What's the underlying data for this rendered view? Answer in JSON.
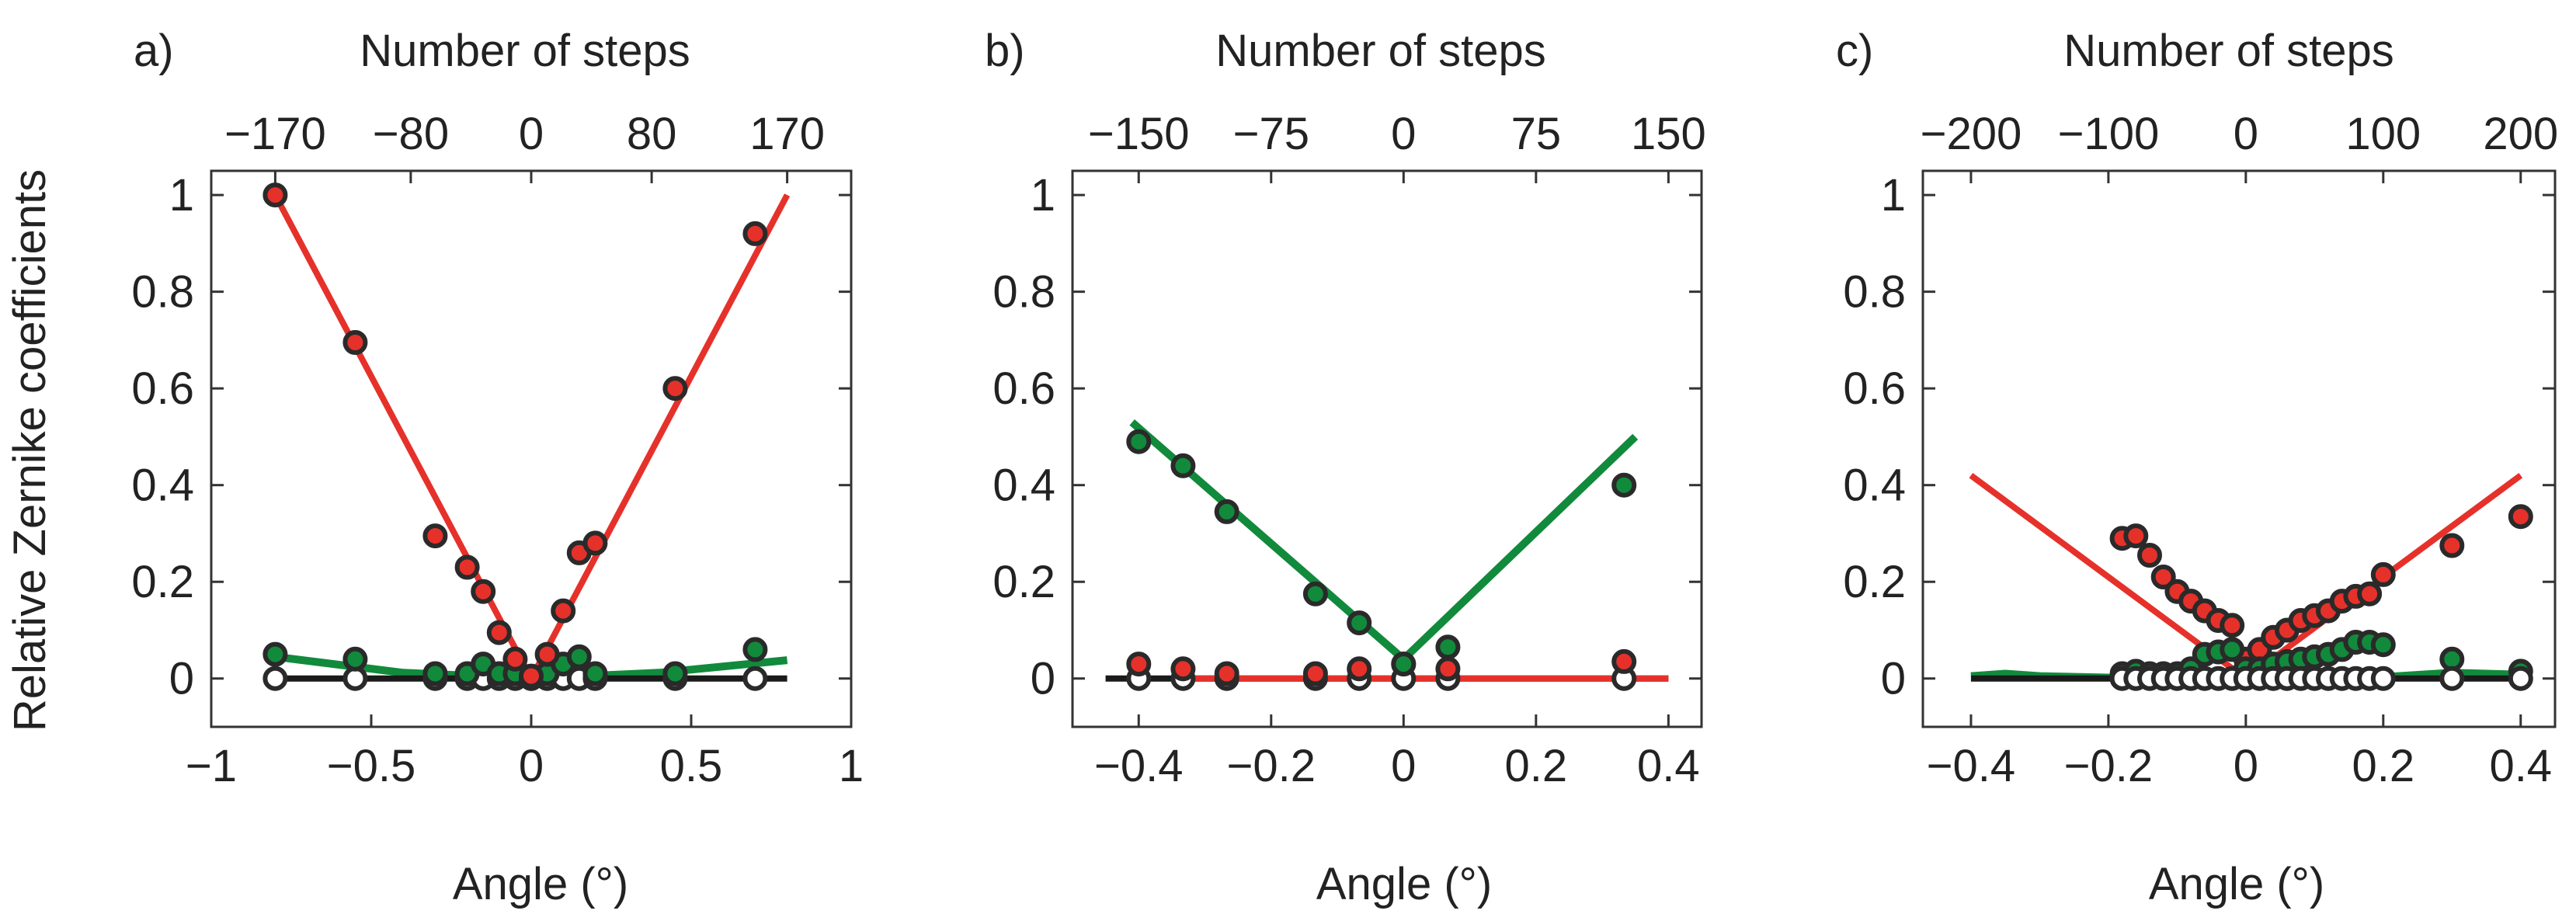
{
  "figure": {
    "ylabel": "Relative Zernike coefficients",
    "colors": {
      "red": "#e6312b",
      "green": "#118a3c",
      "black": "#1a1a1a",
      "marker_edge": "#2a2a2a",
      "white_marker": "#ffffff",
      "axis": "#333333"
    }
  },
  "chart_data": [
    {
      "panel_label": "a)",
      "type": "scatter",
      "title": "Number of steps",
      "xlabel": "Angle (°)",
      "ylabel": "Relative Zernike coefficients",
      "xlim": [
        -1,
        1
      ],
      "ylim": [
        -0.1,
        1.05
      ],
      "xticks": [
        -1,
        -0.5,
        0,
        0.5,
        1
      ],
      "xtick_labels": [
        "−1",
        "−0.5",
        "0",
        "0.5",
        "1"
      ],
      "yticks": [
        0,
        0.2,
        0.4,
        0.6,
        0.8,
        1
      ],
      "ytick_labels": [
        "0",
        "0.2",
        "0.4",
        "0.6",
        "0.8",
        "1"
      ],
      "top_axis": {
        "label": "Number of steps",
        "ticks": [
          -170,
          -80,
          0,
          80,
          170
        ],
        "tick_labels": [
          "−170",
          "−80",
          "0",
          "80",
          "170"
        ],
        "angle_per_step": 0.0047059
      },
      "lines": [
        {
          "name": "red fit",
          "color": "red",
          "x": [
            -0.8,
            0,
            0.8
          ],
          "y": [
            1.0,
            0.0,
            1.0
          ]
        },
        {
          "name": "green fit",
          "color": "green",
          "x": [
            -0.8,
            -0.4,
            0,
            0.4,
            0.8
          ],
          "y": [
            0.045,
            0.012,
            0.0,
            0.012,
            0.038
          ]
        },
        {
          "name": "black fit",
          "color": "black",
          "x": [
            -0.8,
            0.8
          ],
          "y": [
            0.0,
            0.0
          ]
        }
      ],
      "series": [
        {
          "name": "white",
          "color": "white_marker",
          "x": [
            -0.8,
            -0.55,
            -0.3,
            -0.2,
            -0.15,
            -0.1,
            -0.05,
            0.0,
            0.05,
            0.1,
            0.15,
            0.2,
            0.45,
            0.7
          ],
          "y": [
            0,
            0,
            0,
            0,
            0,
            0,
            0,
            0,
            0,
            0,
            0,
            0,
            0,
            0
          ]
        },
        {
          "name": "green",
          "color": "green",
          "x": [
            -0.8,
            -0.55,
            -0.3,
            -0.2,
            -0.15,
            -0.1,
            -0.05,
            0.0,
            0.05,
            0.1,
            0.15,
            0.2,
            0.45,
            0.7
          ],
          "y": [
            0.05,
            0.04,
            0.01,
            0.01,
            0.03,
            0.01,
            0.01,
            0.0,
            0.01,
            0.03,
            0.045,
            0.01,
            0.01,
            0.06
          ]
        },
        {
          "name": "red",
          "color": "red",
          "x": [
            -0.8,
            -0.55,
            -0.3,
            -0.2,
            -0.15,
            -0.1,
            -0.05,
            0.0,
            0.05,
            0.1,
            0.15,
            0.2,
            0.45,
            0.7
          ],
          "y": [
            1.0,
            0.695,
            0.295,
            0.23,
            0.18,
            0.095,
            0.04,
            0.005,
            0.05,
            0.14,
            0.26,
            0.28,
            0.6,
            0.92
          ]
        }
      ]
    },
    {
      "panel_label": "b)",
      "type": "scatter",
      "title": "Number of steps",
      "xlabel": "Angle (°)",
      "ylabel": "",
      "xlim": [
        -0.5,
        0.45
      ],
      "ylim": [
        -0.1,
        1.05
      ],
      "xticks": [
        -0.4,
        -0.2,
        0,
        0.2,
        0.4
      ],
      "xtick_labels": [
        "−0.4",
        "−0.2",
        "0",
        "0.2",
        "0.4"
      ],
      "yticks": [
        0,
        0.2,
        0.4,
        0.6,
        0.8,
        1
      ],
      "ytick_labels": [
        "0",
        "0.2",
        "0.4",
        "0.6",
        "0.8",
        "1"
      ],
      "top_axis": {
        "label": "Number of steps",
        "ticks": [
          -150,
          -75,
          0,
          75,
          150
        ],
        "tick_labels": [
          "−150",
          "−75",
          "0",
          "75",
          "150"
        ],
        "angle_per_step": 0.0026667
      },
      "lines": [
        {
          "name": "black fit",
          "color": "black",
          "x": [
            -0.45,
            0.4
          ],
          "y": [
            0.0,
            0.0
          ]
        },
        {
          "name": "red fit",
          "color": "red",
          "x": [
            -0.34,
            0.4
          ],
          "y": [
            0.0,
            0.0
          ]
        },
        {
          "name": "green fit",
          "color": "green",
          "x": [
            -0.41,
            0.0,
            0.35
          ],
          "y": [
            0.53,
            0.04,
            0.5
          ]
        }
      ],
      "series": [
        {
          "name": "white",
          "color": "white_marker",
          "x": [
            -0.4,
            -0.333,
            -0.267,
            -0.133,
            -0.067,
            0.0,
            0.067,
            0.333
          ],
          "y": [
            0,
            0,
            0,
            0,
            0,
            0,
            0,
            0
          ]
        },
        {
          "name": "red",
          "color": "red",
          "x": [
            -0.4,
            -0.333,
            -0.267,
            -0.133,
            -0.067,
            0.0,
            0.067,
            0.333
          ],
          "y": [
            0.03,
            0.02,
            0.01,
            0.01,
            0.02,
            0.03,
            0.02,
            0.035
          ]
        },
        {
          "name": "green",
          "color": "green",
          "x": [
            -0.4,
            -0.333,
            -0.267,
            -0.133,
            -0.067,
            0.0,
            0.067,
            0.333
          ],
          "y": [
            0.49,
            0.44,
            0.345,
            0.175,
            0.115,
            0.03,
            0.065,
            0.4
          ]
        }
      ]
    },
    {
      "panel_label": "c)",
      "type": "scatter",
      "title": "Number of steps",
      "xlabel": "Angle (°)",
      "ylabel": "",
      "xlim": [
        -0.47,
        0.45
      ],
      "ylim": [
        -0.1,
        1.05
      ],
      "xticks": [
        -0.4,
        -0.2,
        0,
        0.2,
        0.4
      ],
      "xtick_labels": [
        "−0.4",
        "−0.2",
        "0",
        "0.2",
        "0.4"
      ],
      "yticks": [
        0,
        0.2,
        0.4,
        0.6,
        0.8,
        1
      ],
      "ytick_labels": [
        "0",
        "0.2",
        "0.4",
        "0.6",
        "0.8",
        "1"
      ],
      "top_axis": {
        "label": "Number of steps",
        "ticks": [
          -200,
          -100,
          0,
          100,
          200
        ],
        "tick_labels": [
          "−200",
          "−100",
          "0",
          "100",
          "200"
        ],
        "angle_per_step": 0.002
      },
      "lines": [
        {
          "name": "red fit",
          "color": "red",
          "x": [
            -0.4,
            0.0,
            0.4
          ],
          "y": [
            0.42,
            0.0,
            0.42
          ]
        },
        {
          "name": "green fit",
          "color": "green",
          "x": [
            -0.4,
            -0.35,
            -0.3,
            -0.2,
            0.0,
            0.2,
            0.3,
            0.4
          ],
          "y": [
            0.005,
            0.01,
            0.005,
            0.002,
            0.0,
            0.003,
            0.012,
            0.008
          ]
        },
        {
          "name": "black fit",
          "color": "black",
          "x": [
            -0.4,
            0.4
          ],
          "y": [
            0.0,
            0.0
          ]
        }
      ],
      "series": [
        {
          "name": "red",
          "color": "red",
          "x": [
            -0.18,
            -0.16,
            -0.14,
            -0.12,
            -0.1,
            -0.08,
            -0.06,
            -0.04,
            -0.02,
            0.0,
            0.02,
            0.04,
            0.06,
            0.08,
            0.1,
            0.12,
            0.14,
            0.16,
            0.18,
            0.2,
            0.3,
            0.4
          ],
          "y": [
            0.29,
            0.295,
            0.255,
            0.21,
            0.18,
            0.16,
            0.14,
            0.12,
            0.11,
            0.04,
            0.06,
            0.085,
            0.1,
            0.12,
            0.13,
            0.14,
            0.16,
            0.17,
            0.175,
            0.215,
            0.275,
            0.335
          ]
        },
        {
          "name": "green",
          "color": "green",
          "x": [
            -0.18,
            -0.16,
            -0.14,
            -0.12,
            -0.1,
            -0.08,
            -0.06,
            -0.04,
            -0.02,
            0.0,
            0.02,
            0.04,
            0.06,
            0.08,
            0.1,
            0.12,
            0.14,
            0.16,
            0.18,
            0.2,
            0.3,
            0.4
          ],
          "y": [
            0.01,
            0.015,
            0.01,
            0.01,
            0.01,
            0.02,
            0.05,
            0.055,
            0.06,
            0.02,
            0.02,
            0.03,
            0.035,
            0.04,
            0.045,
            0.05,
            0.06,
            0.075,
            0.075,
            0.07,
            0.04,
            0.015
          ]
        },
        {
          "name": "white",
          "color": "white_marker",
          "x": [
            -0.18,
            -0.16,
            -0.14,
            -0.12,
            -0.1,
            -0.08,
            -0.06,
            -0.04,
            -0.02,
            0.0,
            0.02,
            0.04,
            0.06,
            0.08,
            0.1,
            0.12,
            0.14,
            0.16,
            0.18,
            0.2,
            0.3,
            0.4
          ],
          "y": [
            0,
            0,
            0,
            0,
            0,
            0,
            0,
            0,
            0,
            0,
            0,
            0,
            0,
            0,
            0,
            0,
            0,
            0,
            0,
            0,
            0,
            0
          ]
        }
      ]
    }
  ]
}
